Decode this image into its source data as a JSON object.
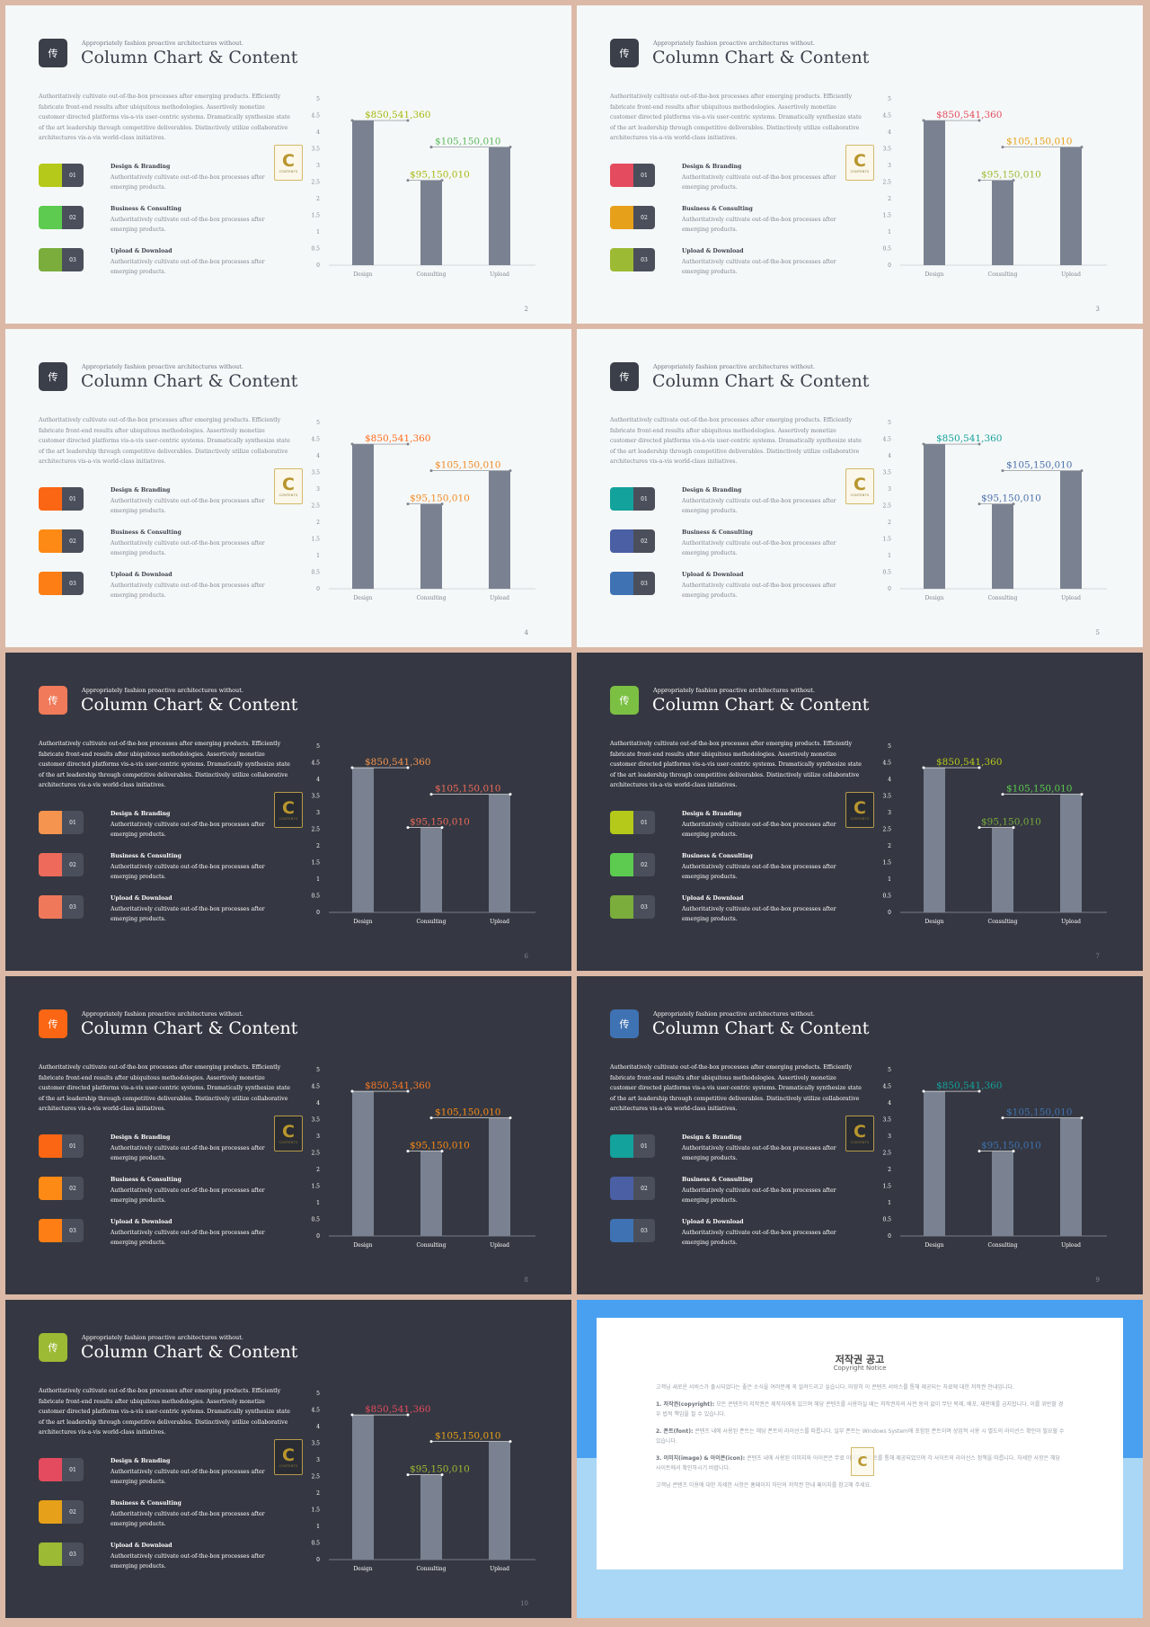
{
  "content": {
    "logo_glyph": "传",
    "subtitle": "Appropriately fashion proactive architectures without.",
    "title": "Column Chart & Content",
    "paragraph": "Authoritatively cultivate out-of-the-box processes after emerging products. Efficiently fabricate front-end results after ubiquitous methodologies. Assertively monetize customer directed platforms vis-a-vis user-centric systems. Dramatically synthesize state of the art leadership through competitive deliverables. Distinctively utilize collaborative architectures vis-a-vis world-class initiatives.",
    "items": [
      {
        "num": "01",
        "title": "Design & Branding",
        "desc": "Authoritatively cultivate out-of-the-box processes after emerging products."
      },
      {
        "num": "02",
        "title": "Business & Consulting",
        "desc": "Authoritatively cultivate out-of-the-box processes after emerging products."
      },
      {
        "num": "03",
        "title": "Upload & Download",
        "desc": "Authoritatively cultivate out-of-the-box processes after emerging products."
      }
    ],
    "badge_letter": "C",
    "badge_sub": "CONTENTS"
  },
  "chart_data": {
    "type": "bar",
    "categories": [
      "Design",
      "Consulting",
      "Upload"
    ],
    "values": [
      4.35,
      2.55,
      3.55
    ],
    "ylim": [
      0,
      5
    ],
    "yticks": [
      "0",
      "0.5",
      "1",
      "1.5",
      "2",
      "2.5",
      "3",
      "3.5",
      "4",
      "4.5",
      "5"
    ],
    "annotations": [
      "$850,541,360",
      "$95,150,010",
      "$105,150,010"
    ],
    "bar_color": "#7a8291",
    "grid": false,
    "legend": "none"
  },
  "slides": [
    {
      "theme": "light",
      "page": "2",
      "accent": "#3a3f4a",
      "items": [
        "#b5c91a",
        "#5ccb50",
        "#7aad3c"
      ],
      "labels": [
        "#a6b80f",
        "#a6b80f",
        "#5ab95a"
      ]
    },
    {
      "theme": "light",
      "page": "3",
      "accent": "#3a3f4a",
      "items": [
        "#e54b5e",
        "#e7a019",
        "#9dba34"
      ],
      "labels": [
        "#e54b5e",
        "#9dba34",
        "#e7a019"
      ]
    },
    {
      "theme": "light",
      "page": "4",
      "accent": "#3a3f4a",
      "items": [
        "#fb6614",
        "#fc8a14",
        "#fc7e14"
      ],
      "labels": [
        "#ff6b1a",
        "#f08a24",
        "#f08a24"
      ]
    },
    {
      "theme": "light",
      "page": "5",
      "accent": "#3a3f4a",
      "items": [
        "#13a29c",
        "#4a5fa4",
        "#3f72b3"
      ],
      "labels": [
        "#13a29c",
        "#4a6fad",
        "#4a6fad"
      ]
    },
    {
      "theme": "dark",
      "page": "6",
      "accent": "#f07a5a",
      "items": [
        "#f5944f",
        "#ee6a5a",
        "#f0785a"
      ],
      "labels": [
        "#f5944f",
        "#ee6a5a",
        "#ee6a5a"
      ]
    },
    {
      "theme": "dark",
      "page": "7",
      "accent": "#7cc043",
      "items": [
        "#b5c91a",
        "#5ccb50",
        "#7aad3c"
      ],
      "labels": [
        "#b5c91a",
        "#7aad3c",
        "#5ccb50"
      ]
    },
    {
      "theme": "dark",
      "page": "8",
      "accent": "#fb6614",
      "items": [
        "#fb6614",
        "#fc8a14",
        "#fc7e14"
      ],
      "labels": [
        "#fb7a24",
        "#fc8a14",
        "#fc8a14"
      ]
    },
    {
      "theme": "dark",
      "page": "9",
      "accent": "#3f72b3",
      "items": [
        "#13a29c",
        "#4a5fa4",
        "#3f72b3"
      ],
      "labels": [
        "#13a29c",
        "#3f72b3",
        "#3f72b3"
      ]
    },
    {
      "theme": "dark",
      "page": "10",
      "accent": "#9dba34",
      "items": [
        "#e54b5e",
        "#e7a019",
        "#9dba34"
      ],
      "labels": [
        "#e54b5e",
        "#9dba34",
        "#e7a019"
      ]
    }
  ],
  "notice": {
    "title": "저작권 공고",
    "subtitle": "Copyright Notice",
    "paragraphs": [
      {
        "head": "",
        "text": "고객님 새로운 서비스가 출시되었다는 좋은 소식을 여러분께 꼭 알려드리고 싶습니다. 마땅히 이 콘텐츠 서비스를 통해 제공되는 자료에 대한 저작권 안내입니다."
      },
      {
        "head": "1. 저작권(copyright):",
        "text": " 모든 콘텐츠의 저작권은 제작자에게 있으며 해당 콘텐츠를 사용하실 때는 저작권자의 사전 동의 없이 무단 복제, 배포, 재판매를 금지합니다. 이를 위반할 경우 법적 책임을 질 수 있습니다."
      },
      {
        "head": "2. 폰트(font):",
        "text": " 콘텐츠 내에 사용된 폰트는 해당 폰트의 라이선스를 따릅니다. 일부 폰트는 Windows System에 포함된 폰트이며 상업적 사용 시 별도의 라이선스 확인이 필요할 수 있습니다."
      },
      {
        "head": "3. 이미지(image) & 아이콘(icon):",
        "text": " 콘텐츠 내에 사용된 이미지와 아이콘은 무료 이미지 사이트를 통해 제공되었으며 각 사이트의 라이선스 정책을 따릅니다. 자세한 사항은 해당 사이트에서 확인하시기 바랍니다."
      },
      {
        "head": "",
        "text": "고객님 콘텐츠 이용에 대한 자세한 사항은 홈페이지 하단의 저작권 안내 페이지를 참고해 주세요."
      }
    ]
  }
}
